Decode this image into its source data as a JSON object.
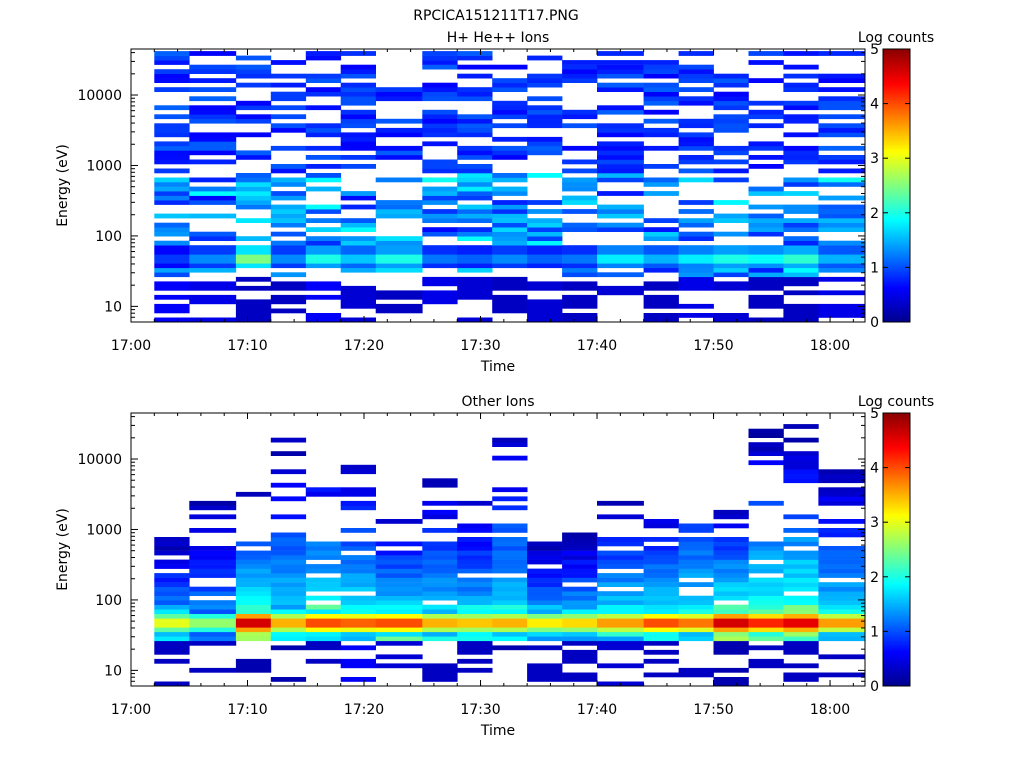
{
  "figure_title": "RPCICA151211T17.PNG",
  "colormap": [
    "#00008b",
    "#0000ff",
    "#0080ff",
    "#00ffff",
    "#80ff80",
    "#ffff00",
    "#ff8000",
    "#ff0000",
    "#8b0000"
  ],
  "chart_data": [
    {
      "type": "heatmap",
      "title": "H+ He++ Ions",
      "xlabel": "Time",
      "ylabel": "Energy (eV)",
      "yscale": "log",
      "ylim": [
        6,
        45000
      ],
      "xlim": [
        "17:00",
        "18:03"
      ],
      "x_ticks": [
        "17:00",
        "17:10",
        "17:20",
        "17:30",
        "17:40",
        "17:50",
        "18:00"
      ],
      "y_ticks": [
        "10",
        "100",
        "1000",
        "10000"
      ],
      "colorbar": {
        "label": "Log counts",
        "range": [
          0,
          5
        ],
        "ticks": [
          "0",
          "1",
          "2",
          "3",
          "4",
          "5"
        ]
      },
      "time_bin_starts": [
        "17:02",
        "17:05",
        "17:09",
        "17:12",
        "17:15",
        "17:18",
        "17:21",
        "17:25",
        "17:28",
        "17:31",
        "17:34",
        "17:37",
        "17:40",
        "17:44",
        "17:47",
        "17:50",
        "17:53",
        "17:56",
        "17:59"
      ],
      "time_bin_end": "18:03",
      "energy_range_eV": [
        6,
        42000
      ],
      "energy_bins": 60,
      "ion_line_eV": 50,
      "ion_line_log_counts": [
        0.9,
        1.3,
        2.5,
        1.3,
        2.0,
        1.6,
        2.0,
        1.2,
        1.1,
        1.3,
        1.1,
        1.2,
        1.8,
        1.5,
        1.8,
        2.0,
        1.9,
        2.1,
        1.5
      ],
      "low_energy_log_counts": [
        0.6,
        0.5,
        0.3,
        0.3,
        0.6,
        0.4,
        0.3,
        0.5,
        0.4,
        0.3,
        0.4,
        0.3,
        0.4,
        0.3,
        0.5,
        0.4,
        0.3,
        0.3,
        0.5
      ],
      "background_log_counts": 0.6,
      "fill_probability": 0.55,
      "seed": 17
    },
    {
      "type": "heatmap",
      "title": "Other Ions",
      "xlabel": "Time",
      "ylabel": "Energy (eV)",
      "yscale": "log",
      "ylim": [
        6,
        45000
      ],
      "xlim": [
        "17:00",
        "18:03"
      ],
      "x_ticks": [
        "17:00",
        "17:10",
        "17:20",
        "17:30",
        "17:40",
        "17:50",
        "18:00"
      ],
      "y_ticks": [
        "10",
        "100",
        "1000",
        "10000"
      ],
      "colorbar": {
        "label": "Log counts",
        "range": [
          0,
          5
        ],
        "ticks": [
          "0",
          "1",
          "2",
          "3",
          "4",
          "5"
        ]
      },
      "time_bin_starts": [
        "17:02",
        "17:05",
        "17:09",
        "17:12",
        "17:15",
        "17:18",
        "17:21",
        "17:25",
        "17:28",
        "17:31",
        "17:34",
        "17:37",
        "17:40",
        "17:44",
        "17:47",
        "17:50",
        "17:53",
        "17:56",
        "17:59"
      ],
      "time_bin_end": "18:03",
      "energy_range_eV": [
        6,
        42000
      ],
      "energy_bins": 60,
      "ion_line_eV": 48,
      "ion_line_log_counts": [
        3.0,
        2.6,
        4.6,
        3.5,
        4.0,
        3.9,
        4.0,
        3.5,
        3.4,
        3.5,
        3.2,
        3.3,
        3.6,
        4.0,
        3.8,
        4.6,
        4.2,
        4.5,
        3.6
      ],
      "upper_extent_eV": [
        800,
        2500,
        3400,
        21000,
        17500,
        11000,
        1500,
        5800,
        2800,
        33000,
        700,
        900,
        3700,
        2400,
        8600,
        2200,
        28000,
        30000,
        7500
      ],
      "low_energy_log_counts": [
        0.3,
        0.3,
        0.2,
        0.2,
        0.3,
        0.6,
        0.4,
        0.3,
        0.3,
        0.2,
        0.3,
        0.3,
        0.4,
        0.3,
        0.3,
        0.2,
        0.3,
        0.3,
        0.3
      ],
      "seed": 29
    }
  ]
}
